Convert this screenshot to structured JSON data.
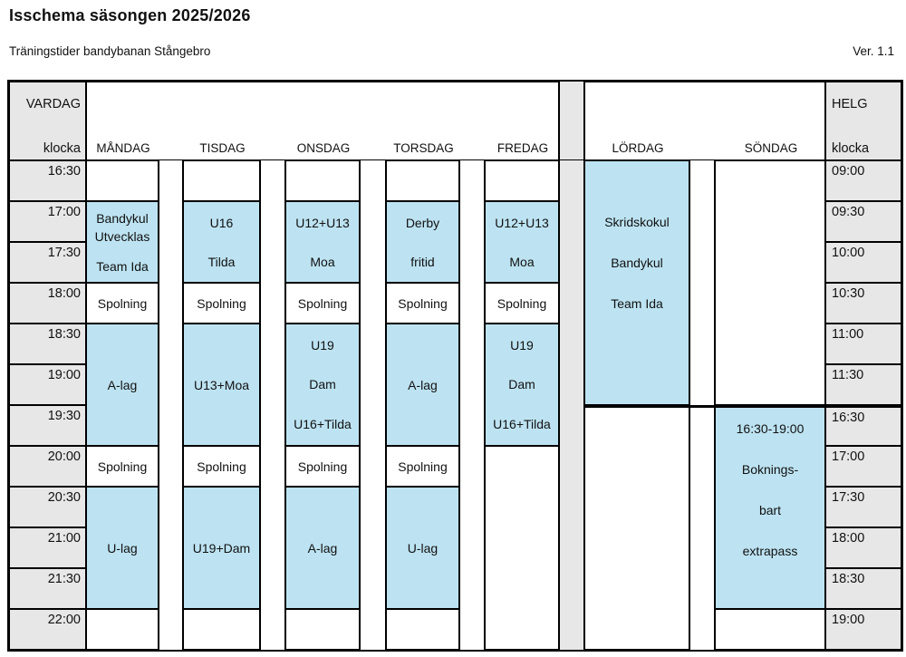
{
  "header": {
    "title": "Isschema säsongen 2025/2026",
    "subtitle": "Träningstider bandybanan Stångebro",
    "version": "Ver. 1.1"
  },
  "colors": {
    "blue": "#BDE3F2",
    "gray": "#E7E7E7",
    "line": "#000000",
    "ink": "#111111"
  },
  "schedule": {
    "corner": {
      "vardag": "VARDAG",
      "helg": "HELG",
      "klocka": "klocka"
    },
    "days": {
      "monday": {
        "label": "MÅNDAG"
      },
      "tuesday": {
        "label": "TISDAG"
      },
      "wednesday": {
        "label": "ONSDAG"
      },
      "thursday": {
        "label": "TORSDAG"
      },
      "friday": {
        "label": "FREDAG"
      },
      "saturday": {
        "label": "LÖRDAG"
      },
      "sunday": {
        "label": "SÖNDAG"
      }
    },
    "weekday_times": [
      "16:30",
      "17:00",
      "17:30",
      "18:00",
      "18:30",
      "19:00",
      "19:30",
      "20:00",
      "20:30",
      "21:00",
      "21:30",
      "22:00"
    ],
    "helg_times": [
      "09:00",
      "09:30",
      "10:00",
      "10:30",
      "11:00",
      "11:30",
      "16:30",
      "17:00",
      "17:30",
      "18:00",
      "18:30",
      "19:00"
    ],
    "cells": {
      "monday_1700": [
        "Bandykul Utvecklas",
        "Team Ida"
      ],
      "monday_1800": [
        "Spolning"
      ],
      "monday_1830": [
        "A-lag"
      ],
      "monday_2000": [
        "Spolning"
      ],
      "monday_2030": [
        "U-lag"
      ],
      "tuesday_1700": [
        "U16",
        "Tilda"
      ],
      "tuesday_1800": [
        "Spolning"
      ],
      "tuesday_1830": [
        "U13+Moa"
      ],
      "tuesday_2000": [
        "Spolning"
      ],
      "tuesday_2030": [
        "U19+Dam"
      ],
      "wednesday_1700": [
        "U12+U13",
        "Moa"
      ],
      "wednesday_1800": [
        "Spolning"
      ],
      "wednesday_1830": [
        "U19",
        "Dam",
        "U16+Tilda"
      ],
      "wednesday_2000": [
        "Spolning"
      ],
      "wednesday_2030": [
        "A-lag"
      ],
      "thursday_1700": [
        "Derby",
        "fritid"
      ],
      "thursday_1800": [
        "Spolning"
      ],
      "thursday_1830": [
        "A-lag"
      ],
      "thursday_2000": [
        "Spolning"
      ],
      "thursday_2030": [
        "U-lag"
      ],
      "friday_1700": [
        "U12+U13",
        "Moa"
      ],
      "friday_1800": [
        "Spolning"
      ],
      "friday_1830": [
        "U19",
        "Dam",
        "U16+Tilda"
      ],
      "saturday_0900": [
        "Skridskokul",
        "Bandykul",
        "Team Ida"
      ],
      "sunday_1630": [
        "16:30-19:00",
        "Boknings-",
        "bart",
        "extrapass"
      ]
    }
  }
}
